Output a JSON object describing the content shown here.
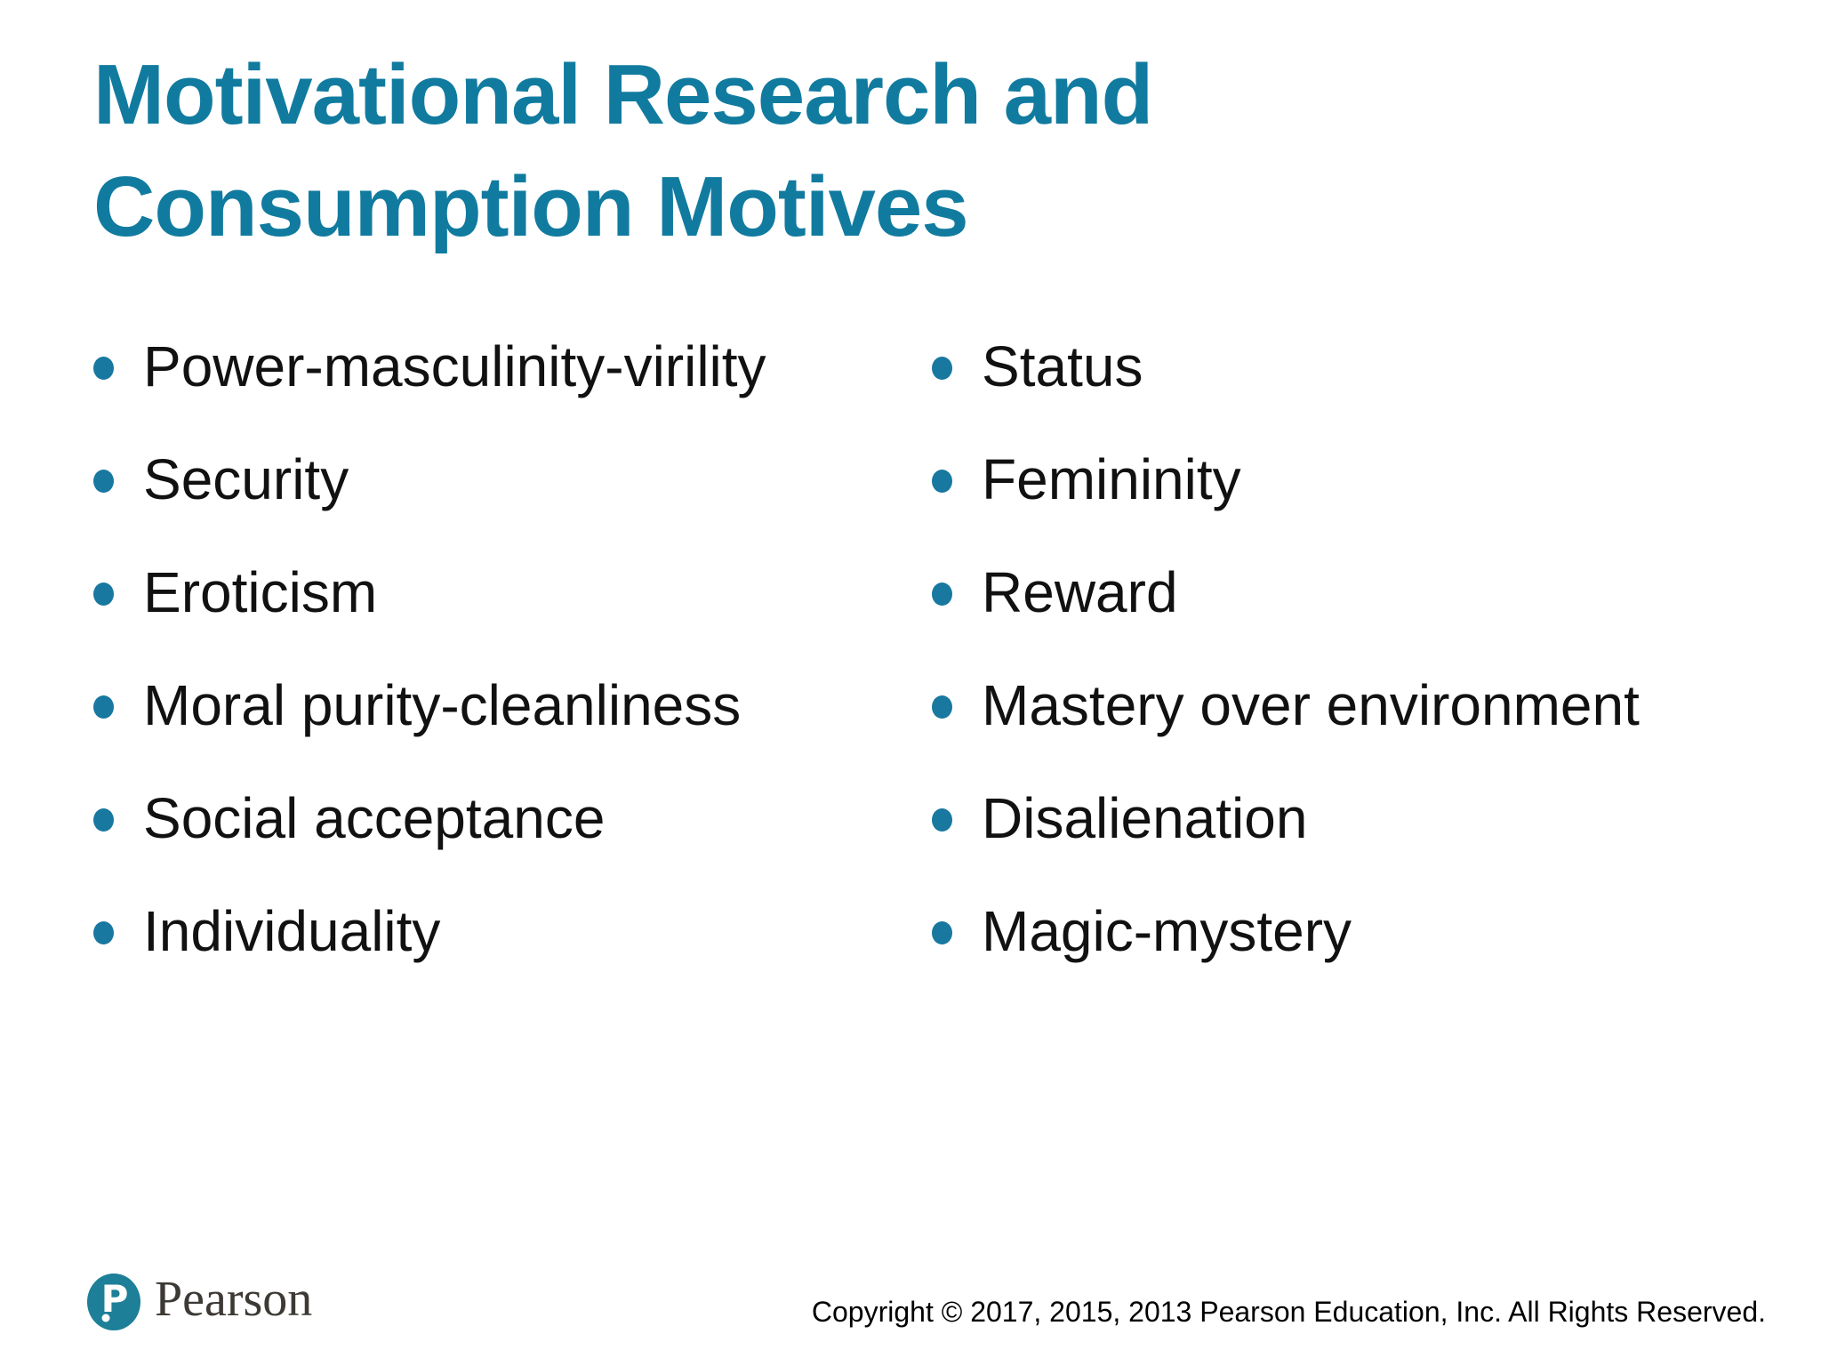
{
  "slide": {
    "title_lines": [
      "Motivational Research and",
      "Consumption Motives"
    ],
    "columns": {
      "left": [
        "Power-masculinity-virility",
        "Security",
        "Eroticism",
        "Moral purity-cleanliness",
        "Social acceptance",
        "Individuality"
      ],
      "right": [
        "Status",
        "Femininity",
        "Reward",
        "Mastery over environment",
        "Disalienation",
        "Magic-mystery"
      ]
    },
    "footer": {
      "brand": "Pearson",
      "logo_icon": "pearson-p-icon",
      "copyright": "Copyright © 2017, 2015, 2013 Pearson Education, Inc. All Rights Reserved."
    },
    "colors": {
      "background": "#ffffff",
      "title": "#117b9f",
      "bullet": "#1878a0",
      "text": "#111111",
      "brand_logo": "#1e7f98",
      "brand_text": "#3d3935"
    }
  }
}
